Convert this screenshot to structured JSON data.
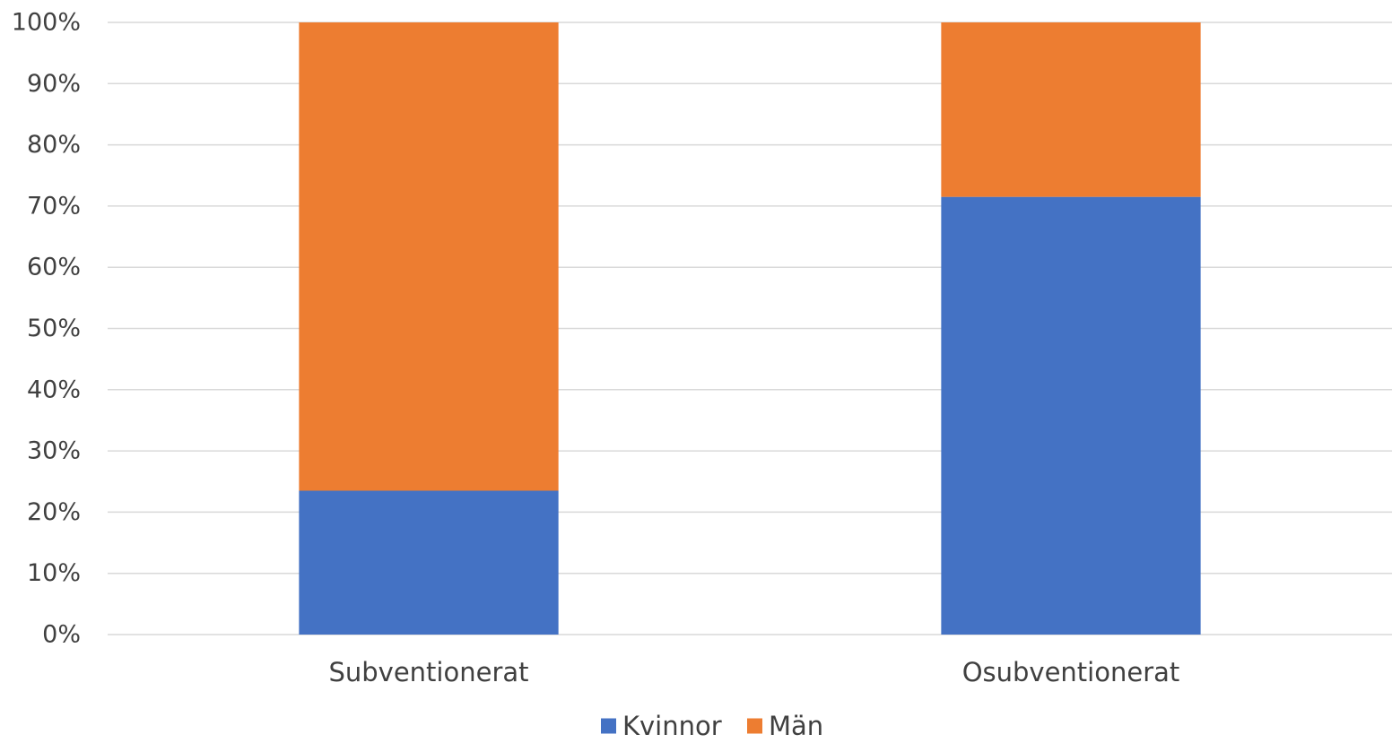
{
  "chart_data": {
    "type": "bar",
    "stacked": true,
    "categories": [
      "Subventionerat",
      "Osubventionerat"
    ],
    "series": [
      {
        "name": "Kvinnor",
        "color": "#4472c4",
        "values": [
          23.5,
          71.5
        ]
      },
      {
        "name": "Män",
        "color": "#ed7d31",
        "values": [
          76.5,
          28.5
        ]
      }
    ],
    "yticks": [
      "0%",
      "10%",
      "20%",
      "30%",
      "40%",
      "50%",
      "60%",
      "70%",
      "80%",
      "90%",
      "100%"
    ],
    "ylim": [
      0,
      100
    ],
    "grid": true,
    "legend_position": "bottom",
    "title": "",
    "xlabel": "",
    "ylabel": ""
  }
}
